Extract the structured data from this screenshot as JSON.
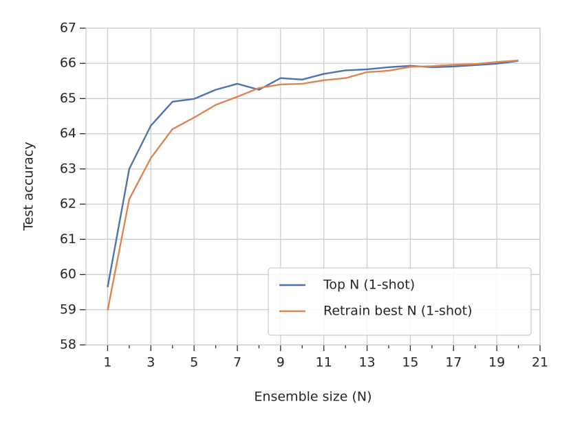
{
  "chart_data": {
    "type": "line",
    "x_label": "Ensemble size (N)",
    "y_label": "Test accuracy",
    "x": [
      1,
      2,
      3,
      4,
      5,
      6,
      7,
      8,
      9,
      10,
      11,
      12,
      13,
      14,
      15,
      16,
      17,
      18,
      19,
      20
    ],
    "series": [
      {
        "name": "Top N (1-shot)",
        "color": "#4c72b0",
        "values": [
          59.64,
          63.0,
          64.23,
          64.91,
          64.99,
          65.25,
          65.42,
          65.25,
          65.58,
          65.54,
          65.7,
          65.8,
          65.83,
          65.89,
          65.93,
          65.89,
          65.91,
          65.95,
          65.99,
          66.07
        ]
      },
      {
        "name": "Retrain best N (1-shot)",
        "color": "#dd8452",
        "values": [
          58.98,
          62.14,
          63.31,
          64.13,
          64.46,
          64.82,
          65.05,
          65.3,
          65.4,
          65.42,
          65.52,
          65.58,
          65.75,
          65.79,
          65.9,
          65.92,
          65.96,
          65.98,
          66.04,
          66.08
        ]
      }
    ],
    "xlim": [
      0,
      21
    ],
    "xticks": [
      1,
      3,
      5,
      7,
      9,
      11,
      13,
      15,
      17,
      19,
      21
    ],
    "ylim": [
      58,
      67
    ],
    "yticks": [
      58,
      59,
      60,
      61,
      62,
      63,
      64,
      65,
      66,
      67
    ],
    "grid": true,
    "legend": "lower right"
  }
}
